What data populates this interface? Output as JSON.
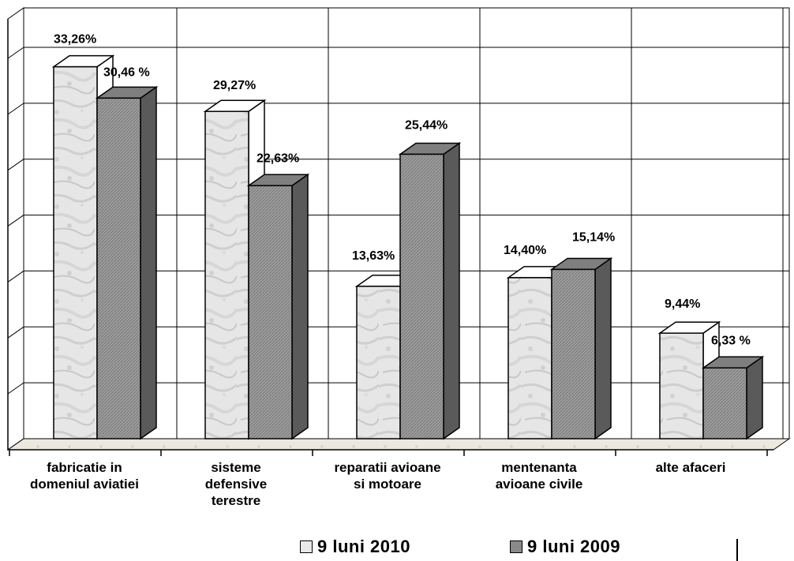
{
  "chart_data": {
    "type": "bar",
    "categories": [
      "fabricatie in\ndomeniul aviatiei",
      "sisteme\ndefensive\nterestre",
      "reparatii avioane\nsi motoare",
      "mentenanta\navioane civile",
      "alte afaceri"
    ],
    "series": [
      {
        "name": "9 luni 2010",
        "values": [
          33.26,
          29.27,
          13.63,
          14.4,
          9.44
        ],
        "labels": [
          "33,26%",
          "29,27%",
          "13,63%",
          "14,40%",
          "9,44%"
        ],
        "color": "#e8e8e8"
      },
      {
        "name": "9 luni 2009",
        "values": [
          30.46,
          22.63,
          25.44,
          15.14,
          6.33
        ],
        "labels": [
          "30,46 %",
          "22,63%",
          "25,44%",
          "15,14%",
          "6,33 %"
        ],
        "color": "#9a9a9a"
      }
    ],
    "ylim": [
      0,
      35
    ],
    "grid": true,
    "legend_position": "bottom"
  }
}
